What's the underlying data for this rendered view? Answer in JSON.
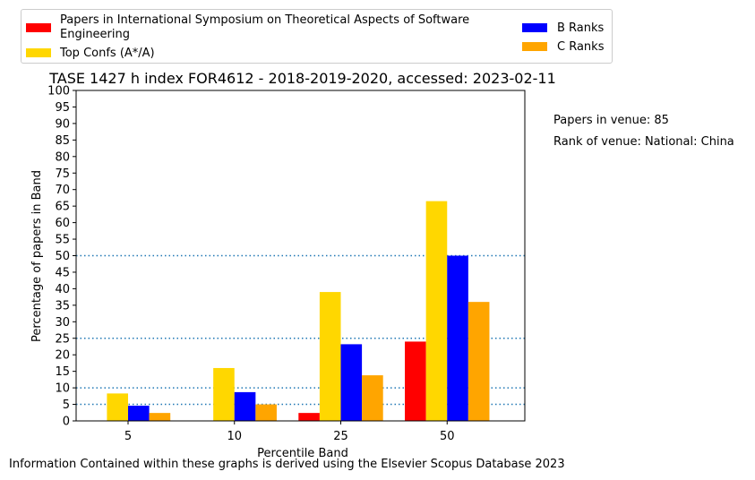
{
  "chart_data": {
    "type": "bar",
    "title": "TASE 1427 h index FOR4612 - 2018-2019-2020, accessed: 2023-02-11",
    "xlabel": "Percentile Band",
    "ylabel": "Percentage of papers in Band",
    "categories": [
      "5",
      "10",
      "25",
      "50"
    ],
    "ylim": [
      0,
      100
    ],
    "yticks": [
      0,
      5,
      10,
      15,
      20,
      25,
      30,
      35,
      40,
      45,
      50,
      55,
      60,
      65,
      70,
      75,
      80,
      85,
      90,
      95,
      100
    ],
    "reference_lines": [
      5,
      10,
      25,
      50
    ],
    "series": [
      {
        "name": "Papers in International Symposium on Theoretical Aspects of Software Engineering",
        "color": "#ff0000",
        "values": [
          0,
          0,
          2.4,
          24.0
        ]
      },
      {
        "name": "Top Confs (A*/A)",
        "color": "#ffd700",
        "values": [
          8.3,
          16.0,
          39.0,
          66.5
        ]
      },
      {
        "name": "B Ranks",
        "color": "#0000ff",
        "values": [
          4.6,
          8.7,
          23.2,
          50.0
        ]
      },
      {
        "name": "C Ranks",
        "color": "#ffa500",
        "values": [
          2.4,
          5.0,
          13.8,
          36.0
        ]
      }
    ],
    "legend_placement": "top-left-outside"
  },
  "legend": {
    "series0_line1": "Papers in International Symposium on Theoretical Aspects of Software",
    "series0_line2": "Engineering",
    "series1": "Top Confs (A*/A)",
    "series2": "B Ranks",
    "series3": "C Ranks"
  },
  "side_notes": {
    "papers_in_venue": "Papers in venue: 85",
    "rank_of_venue": "Rank of venue: National: China"
  },
  "footer": "Information Contained within these graphs is derived using the Elsevier Scopus Database 2023"
}
